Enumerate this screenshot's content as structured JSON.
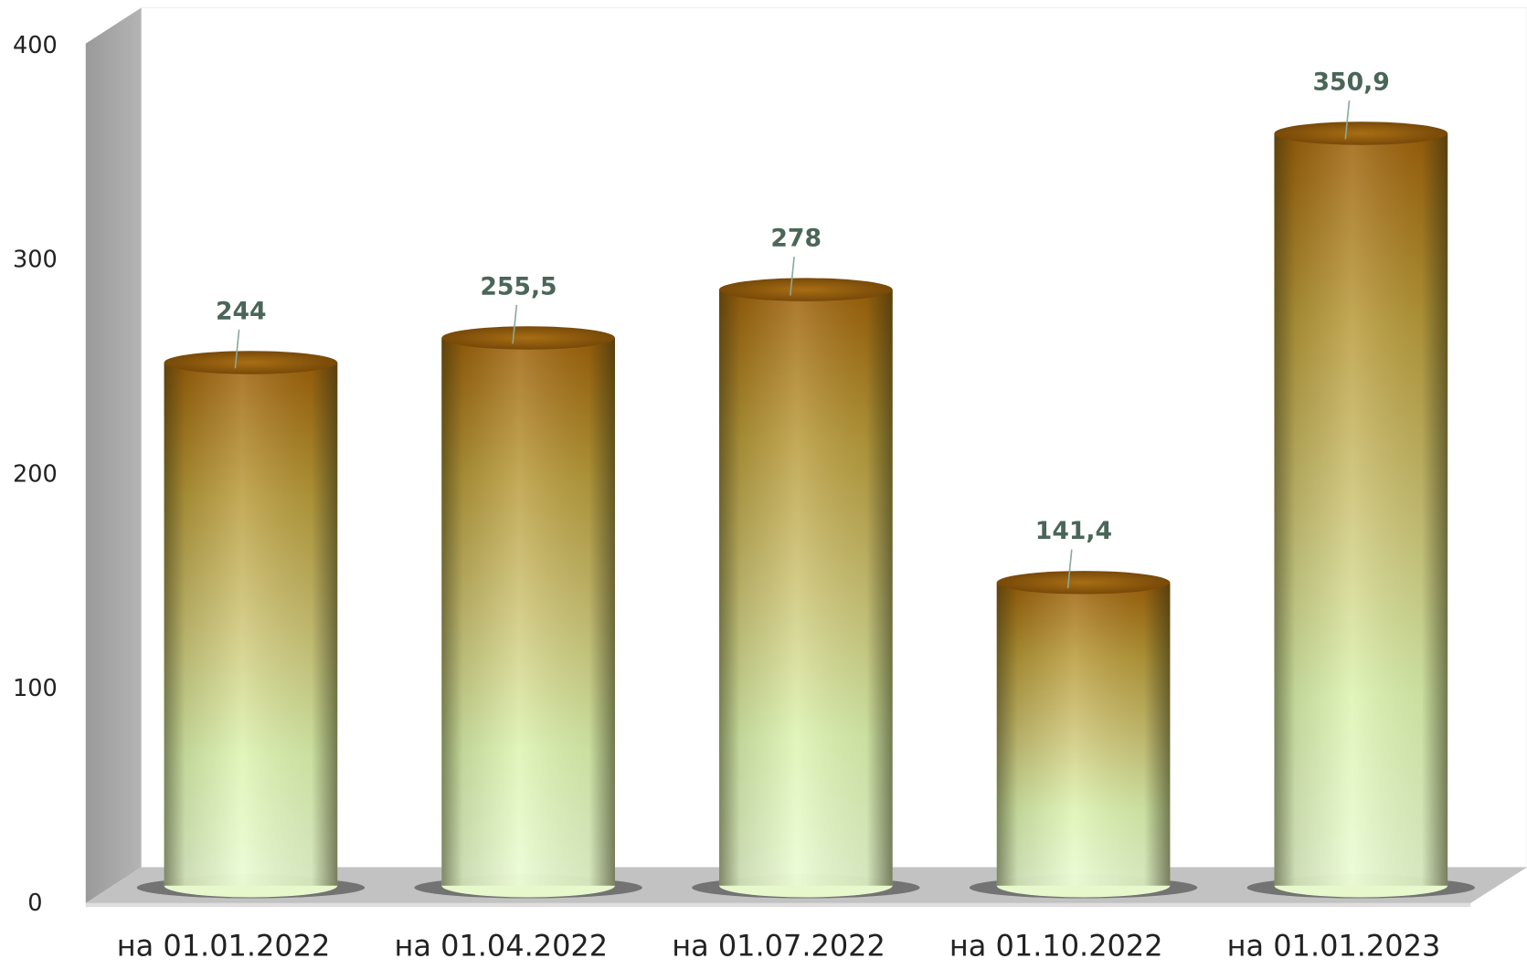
{
  "chart_data": {
    "type": "bar3d",
    "categories": [
      "на 01.01.2022",
      "на 01.04.2022",
      "на 01.07.2022",
      "на 01.10.2022",
      "на 01.01.2023"
    ],
    "values": [
      244,
      255.5,
      278,
      141.4,
      350.9
    ],
    "value_labels": [
      "244",
      "255,5",
      "278",
      "141,4",
      "350,9"
    ],
    "ylim": [
      0,
      400
    ],
    "yticks": [
      0,
      100,
      200,
      300,
      400
    ],
    "grid": false
  }
}
